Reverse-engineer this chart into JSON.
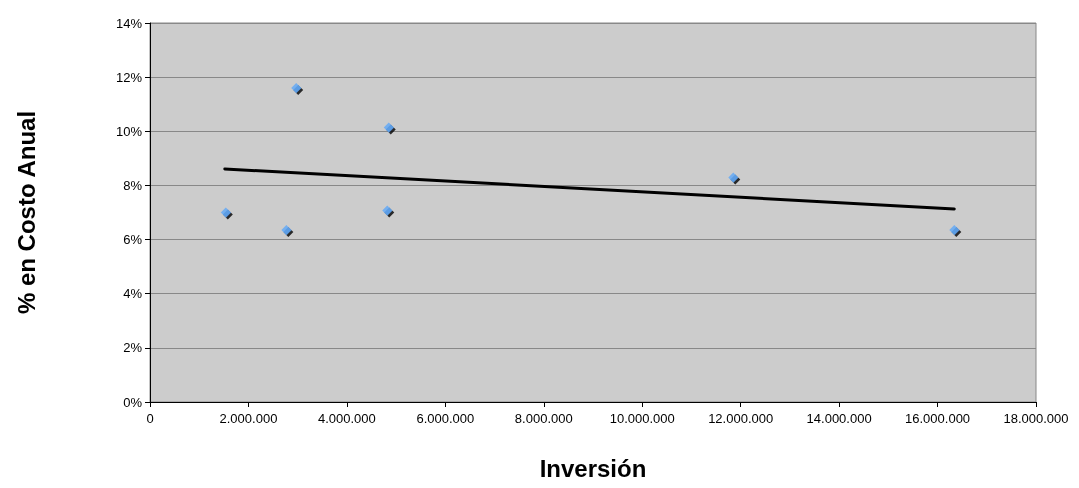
{
  "chart_data": {
    "type": "scatter",
    "xlabel": "Inversión",
    "ylabel": "% en Costo Anual",
    "xlim": [
      0,
      18000000
    ],
    "xticks": [
      0,
      {
        "value": 2000000,
        "label": "2.000.000"
      },
      {
        "value": 4000000,
        "label": "4.000.000"
      },
      {
        "value": 6000000,
        "label": "6.000.000"
      },
      {
        "value": 8000000,
        "label": "8.000.000"
      },
      {
        "value": 10000000,
        "label": "10.000.000"
      },
      {
        "value": 12000000,
        "label": "12.000.000"
      },
      {
        "value": 14000000,
        "label": "14.000.000"
      },
      {
        "value": 16000000,
        "label": "16.000.000"
      },
      {
        "value": 18000000,
        "label": "18.000.000"
      }
    ],
    "ylim": [
      0,
      14
    ],
    "yticks": [
      {
        "value": 0,
        "label": "0%"
      },
      {
        "value": 2,
        "label": "2%"
      },
      {
        "value": 4,
        "label": "4%"
      },
      {
        "value": 6,
        "label": "6%"
      },
      {
        "value": 8,
        "label": "8%"
      },
      {
        "value": 10,
        "label": "10%"
      },
      {
        "value": 12,
        "label": "12%"
      },
      {
        "value": 14,
        "label": "14%"
      }
    ],
    "grid": "y",
    "marker": "diamond",
    "series": [
      {
        "color": "#5ea8f7",
        "x": [
          1540000,
          2770000,
          2970000,
          4850000,
          4820000,
          11850000,
          16340000
        ],
        "values": [
          7.0,
          6.35,
          11.6,
          10.14,
          7.07,
          8.29,
          6.35
        ]
      },
      {
        "type": "line",
        "color": "#000000",
        "marker": "none",
        "line_style": "solid",
        "x": [
          1520000,
          16340000
        ],
        "values": [
          8.61,
          7.13
        ]
      }
    ]
  }
}
